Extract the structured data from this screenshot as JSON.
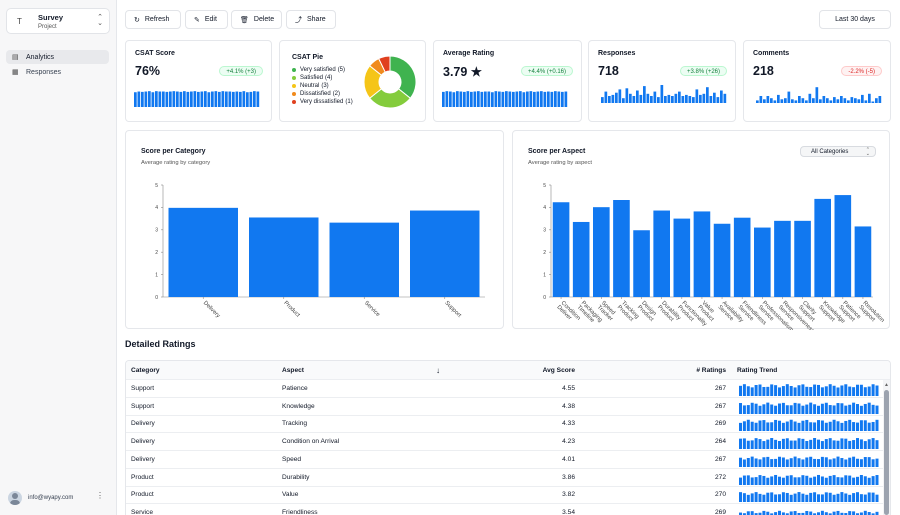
{
  "sidebar": {
    "project": {
      "initial": "T",
      "name": "Survey",
      "sub": "Project"
    },
    "items": [
      {
        "label": "Analytics",
        "icon": "chart-icon",
        "active": true
      },
      {
        "label": "Responses",
        "icon": "table-icon",
        "active": false
      }
    ],
    "user": {
      "email": "info@wyapy.com"
    }
  },
  "toolbar": {
    "refresh": "Refresh",
    "edit": "Edit",
    "delete": "Delete",
    "share": "Share",
    "range": "Last 30 days"
  },
  "kpis": {
    "csat": {
      "label": "CSAT Score",
      "value": "76%",
      "delta": "+4.1% (+3)",
      "trend": [
        0.82,
        0.86,
        0.84,
        0.86,
        0.88,
        0.82,
        0.88,
        0.86,
        0.86,
        0.84,
        0.86,
        0.88,
        0.86,
        0.84,
        0.88,
        0.84,
        0.86,
        0.88,
        0.84,
        0.86,
        0.88,
        0.82,
        0.86,
        0.88,
        0.84,
        0.88,
        0.86,
        0.86,
        0.84,
        0.86,
        0.84,
        0.88,
        0.82,
        0.84,
        0.88,
        0.86
      ]
    },
    "pie": {
      "label": "CSAT Pie",
      "items": [
        {
          "label": "Very satisfied",
          "count": "(5)",
          "value": 5,
          "color": "#3fb34f"
        },
        {
          "label": "Satisfied",
          "count": "(4)",
          "value": 4,
          "color": "#84cc3c"
        },
        {
          "label": "Neutral",
          "count": "(3)",
          "value": 3,
          "color": "#f5c518"
        },
        {
          "label": "Dissatisfied",
          "count": "(2)",
          "value": 1,
          "color": "#f08a1c"
        },
        {
          "label": "Very dissatisfied",
          "count": "(1)",
          "value": 1,
          "color": "#e0401f"
        }
      ]
    },
    "avg": {
      "label": "Average Rating",
      "value": "3.79 ★",
      "delta": "+4.4% (+0.16)",
      "trend": [
        0.84,
        0.88,
        0.86,
        0.82,
        0.88,
        0.86,
        0.84,
        0.88,
        0.84,
        0.86,
        0.88,
        0.84,
        0.86,
        0.86,
        0.82,
        0.88,
        0.86,
        0.84,
        0.88,
        0.86,
        0.84,
        0.86,
        0.88,
        0.82,
        0.86,
        0.88,
        0.84,
        0.86,
        0.88,
        0.84,
        0.86,
        0.84,
        0.88,
        0.86,
        0.84,
        0.86
      ]
    },
    "responses": {
      "label": "Responses",
      "value": "718",
      "delta": "+3.8% (+26)",
      "trend": [
        0.45,
        0.7,
        0.5,
        0.55,
        0.65,
        0.8,
        0.4,
        0.85,
        0.6,
        0.5,
        0.75,
        0.55,
        0.95,
        0.6,
        0.5,
        0.7,
        0.45,
        1.0,
        0.5,
        0.55,
        0.5,
        0.6,
        0.7,
        0.5,
        0.55,
        0.5,
        0.45,
        0.8,
        0.55,
        0.6,
        0.9,
        0.5,
        0.65,
        0.45,
        0.75,
        0.6
      ]
    },
    "comments": {
      "label": "Comments",
      "value": "218",
      "delta": "-2.2% (-5)",
      "trend": [
        0.3,
        0.5,
        0.35,
        0.5,
        0.4,
        0.3,
        0.55,
        0.35,
        0.4,
        0.7,
        0.35,
        0.3,
        0.5,
        0.4,
        0.3,
        0.6,
        0.4,
        0.9,
        0.35,
        0.5,
        0.4,
        0.3,
        0.45,
        0.35,
        0.5,
        0.4,
        0.3,
        0.45,
        0.4,
        0.35,
        0.55,
        0.3,
        0.6,
        0.25,
        0.4,
        0.5
      ]
    }
  },
  "chart_data": [
    {
      "type": "bar",
      "title": "Score per Category",
      "subtitle": "Average rating by category",
      "categories": [
        "Delivery",
        "Product",
        "Service",
        "Support"
      ],
      "values": [
        3.98,
        3.55,
        3.32,
        3.86
      ],
      "ylim": [
        0,
        5
      ],
      "yticks": [
        0,
        1,
        2,
        3,
        4,
        5
      ],
      "color": "#1178f0"
    },
    {
      "type": "bar",
      "title": "Score per Aspect",
      "subtitle": "Average rating by aspect",
      "filter": "All Categories",
      "categories": [
        "Condition Deliver",
        "Packaging Timeline",
        "Speed Tracker",
        "Tracking Product",
        "Design Product",
        "Durability Product",
        "Functionality Product",
        "Value Product",
        "Availability Service",
        "Friendliness Service",
        "Professionalism Service",
        "Responsiveness Service",
        "Clarity Support",
        "Knowledge Support",
        "Patience Support",
        "Resolution Support"
      ],
      "values": [
        4.23,
        3.35,
        4.01,
        4.33,
        2.98,
        3.86,
        3.5,
        3.82,
        3.27,
        3.54,
        3.1,
        3.4,
        3.4,
        4.38,
        4.55,
        3.15
      ],
      "ylim": [
        0,
        5
      ],
      "yticks": [
        0,
        1,
        2,
        3,
        4,
        5
      ],
      "color": "#1178f0"
    }
  ],
  "table": {
    "title": "Detailed Ratings",
    "headers": {
      "category": "Category",
      "aspect": "Aspect",
      "avg": "Avg Score",
      "num": "# Ratings",
      "trend": "Rating Trend"
    },
    "rows": [
      {
        "category": "Support",
        "aspect": "Patience",
        "avg": "4.55",
        "num": "267"
      },
      {
        "category": "Support",
        "aspect": "Knowledge",
        "avg": "4.38",
        "num": "267"
      },
      {
        "category": "Delivery",
        "aspect": "Tracking",
        "avg": "4.33",
        "num": "269"
      },
      {
        "category": "Delivery",
        "aspect": "Condition on Arrival",
        "avg": "4.23",
        "num": "264"
      },
      {
        "category": "Delivery",
        "aspect": "Speed",
        "avg": "4.01",
        "num": "267"
      },
      {
        "category": "Product",
        "aspect": "Durability",
        "avg": "3.86",
        "num": "272"
      },
      {
        "category": "Product",
        "aspect": "Value",
        "avg": "3.82",
        "num": "270"
      },
      {
        "category": "Service",
        "aspect": "Friendliness",
        "avg": "3.54",
        "num": "269"
      }
    ]
  }
}
